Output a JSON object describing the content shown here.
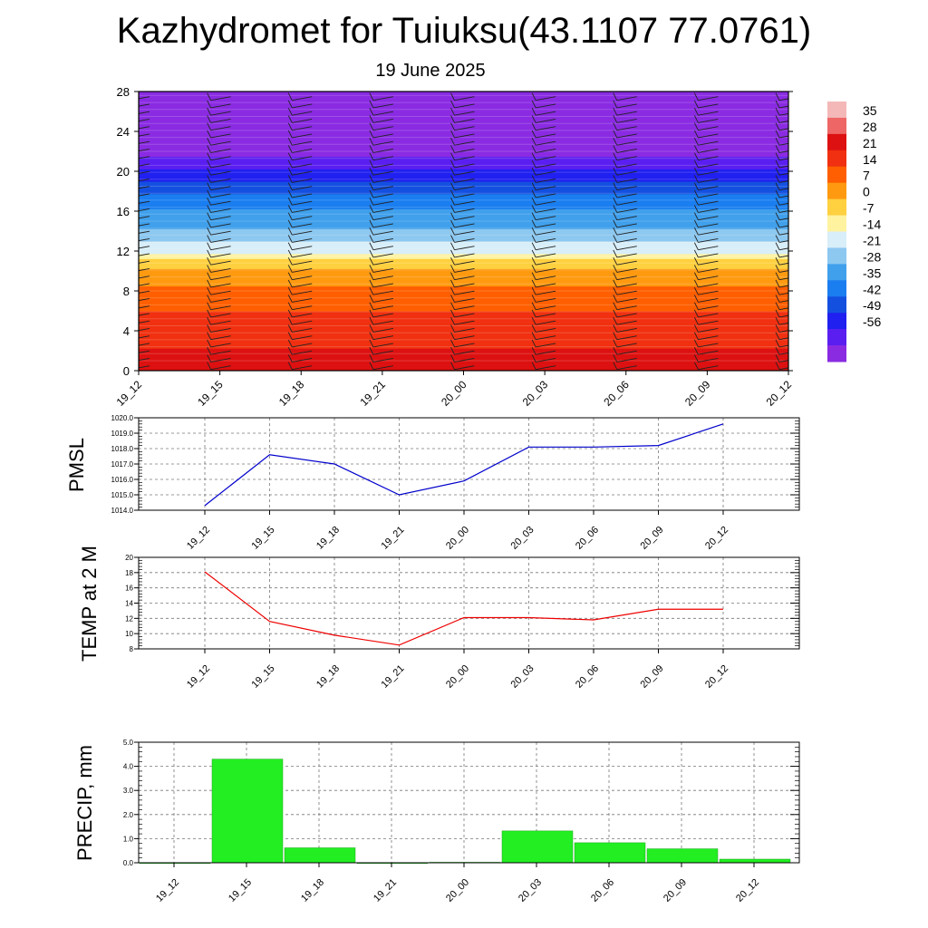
{
  "page": {
    "title": "Kazhydromet for Tuiuksu(43.1107 77.0761)",
    "subtitle": "19 June 2025"
  },
  "chart_data": [
    {
      "type": "heatmap",
      "title": "",
      "xlabel": "",
      "ylabel": "",
      "x_ticks": [
        "19_12",
        "19_15",
        "19_18",
        "19_21",
        "20_00",
        "20_03",
        "20_06",
        "20_09",
        "20_12"
      ],
      "y_ticks": [
        "0",
        "4",
        "8",
        "12",
        "16",
        "20",
        "24",
        "28"
      ],
      "ylim": [
        0,
        28
      ],
      "colorbar": {
        "labels": [
          "35",
          "28",
          "21",
          "14",
          "7",
          "0",
          "-7",
          "-14",
          "-21",
          "-28",
          "-35",
          "-42",
          "-49",
          "-56"
        ],
        "colors": [
          "#f4b8b8",
          "#ee6666",
          "#dd1111",
          "#f03010",
          "#ff5f00",
          "#ff9a10",
          "#ffd040",
          "#fff3a0",
          "#d8eef8",
          "#8cc8f0",
          "#40a0ec",
          "#1a7ef0",
          "#1450e0",
          "#2020f0",
          "#5a1ff0",
          "#8a2be2"
        ]
      },
      "temperature_profile": [
        {
          "height": 0,
          "value": 22
        },
        {
          "height": 4,
          "value": 16
        },
        {
          "height": 8,
          "value": 8
        },
        {
          "height": 11,
          "value": -4
        },
        {
          "height": 12,
          "value": -16
        },
        {
          "height": 14,
          "value": -26
        },
        {
          "height": 17,
          "value": -36
        },
        {
          "height": 20,
          "value": -52
        },
        {
          "height": 22,
          "value": -62
        },
        {
          "height": 28,
          "value": -66
        }
      ],
      "wind_barbs": "shown at each time step along every height level"
    },
    {
      "type": "line",
      "ylabel": "PMSL",
      "categories": [
        "19_12",
        "19_15",
        "19_18",
        "19_21",
        "20_00",
        "20_03",
        "20_06",
        "20_09",
        "20_12"
      ],
      "y_ticks": [
        "1014.0",
        "1015.0",
        "1016.0",
        "1017.0",
        "1018.0",
        "1019.0",
        "1020.0"
      ],
      "ylim": [
        1014,
        1020
      ],
      "series": [
        {
          "color": "#0000cc",
          "values": [
            1014.3,
            1017.6,
            1017.0,
            1015.0,
            1015.9,
            1018.1,
            1018.1,
            1018.2,
            1019.6
          ]
        }
      ],
      "grid": true
    },
    {
      "type": "line",
      "ylabel": "TEMP at 2 M",
      "categories": [
        "19_12",
        "19_15",
        "19_18",
        "19_21",
        "20_00",
        "20_03",
        "20_06",
        "20_09",
        "20_12"
      ],
      "y_ticks": [
        "8",
        "10",
        "12",
        "14",
        "16",
        "18",
        "20"
      ],
      "ylim": [
        8,
        20
      ],
      "series": [
        {
          "color": "#ee0000",
          "values": [
            18.1,
            11.6,
            9.8,
            8.5,
            12.1,
            12.1,
            11.8,
            13.2,
            13.2
          ]
        }
      ],
      "grid": true
    },
    {
      "type": "bar",
      "ylabel": "PRECIP, mm",
      "categories": [
        "19_12",
        "19_15",
        "19_18",
        "19_21",
        "20_00",
        "20_03",
        "20_06",
        "20_09",
        "20_12"
      ],
      "y_ticks": [
        "0.0",
        "1.0",
        "2.0",
        "3.0",
        "4.0",
        "5.0"
      ],
      "ylim": [
        0,
        5
      ],
      "values": [
        0.0,
        4.3,
        0.62,
        0.0,
        0.02,
        1.32,
        0.83,
        0.58,
        0.15
      ],
      "bar_color": "#22ee22",
      "grid": true
    }
  ]
}
